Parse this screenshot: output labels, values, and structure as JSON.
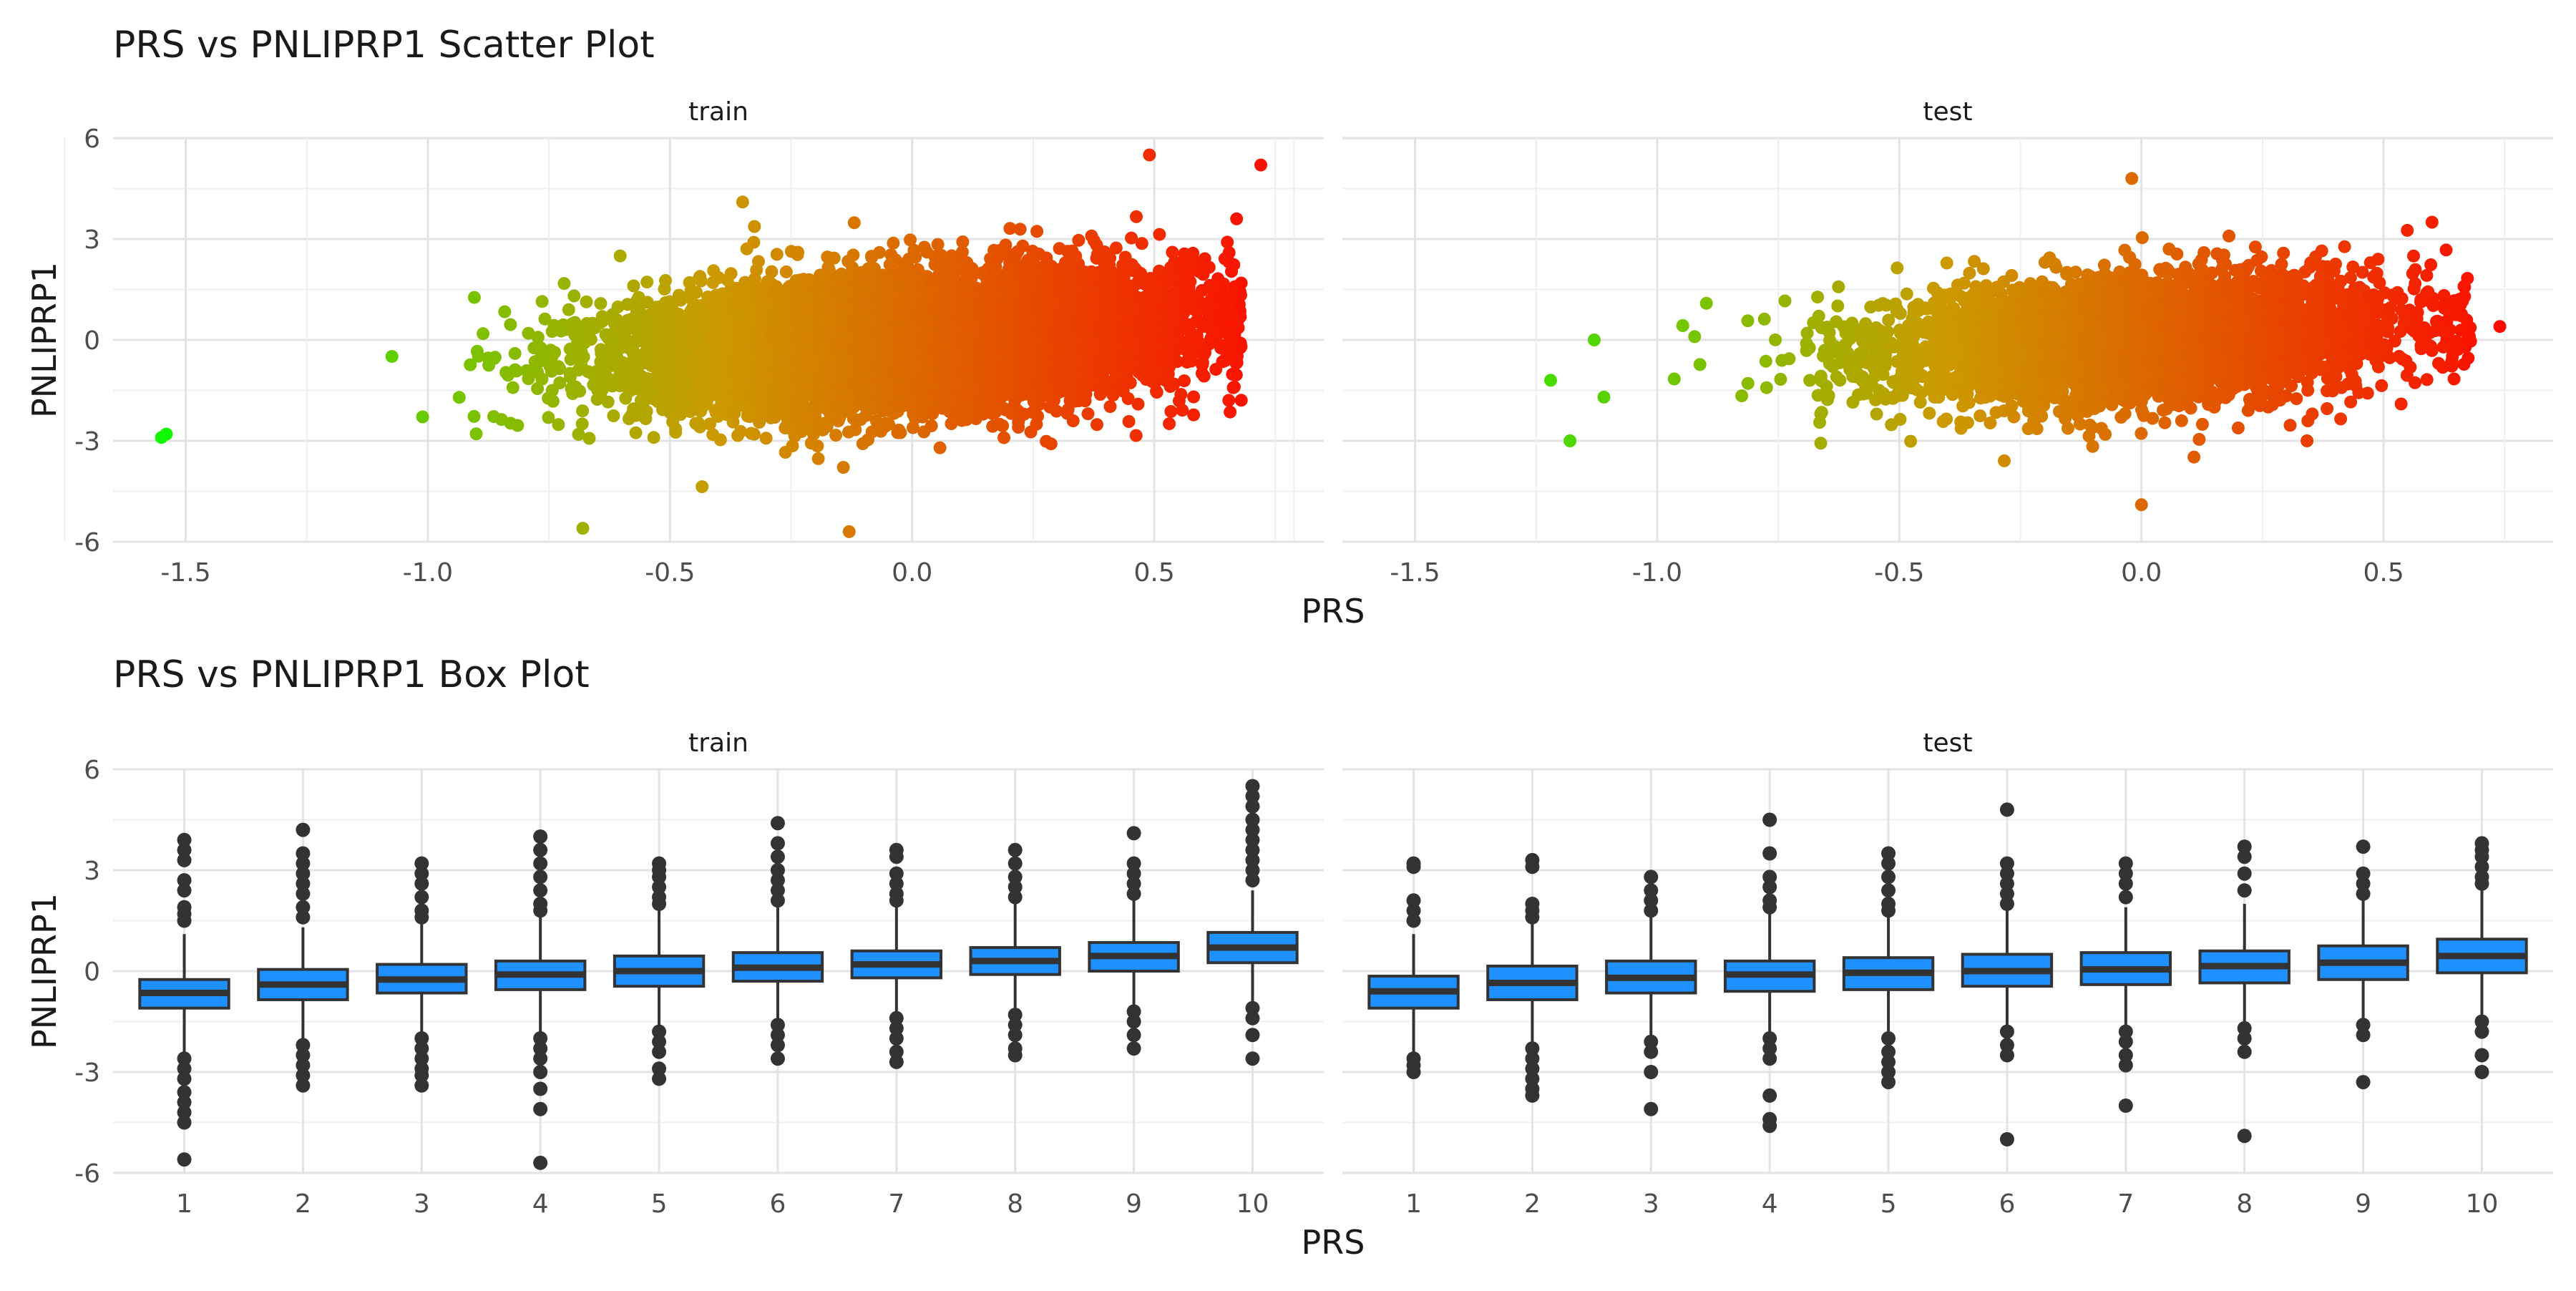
{
  "chart_data": [
    {
      "type": "scatter",
      "title": "PRS vs PNLIPRP1 Scatter Plot",
      "xlabel": "PRS",
      "ylabel": "PNLIPRP1",
      "facets": [
        "train",
        "test"
      ],
      "x_ticks": [
        "-1.5",
        "-1.0",
        "-0.5",
        "0.0",
        "0.5"
      ],
      "y_ticks": [
        "6",
        "3",
        "0",
        "-3",
        "-6"
      ],
      "xlim": [
        -1.65,
        0.85
      ],
      "ylim": [
        -6,
        6
      ],
      "grid": true,
      "color_scale": {
        "low": "#00ff00",
        "mid": "#cc9900",
        "high": "#ff0000",
        "mapped_to": "PRS"
      },
      "trend": {
        "slope": 1.75,
        "intercept": 0.2
      },
      "series": [
        {
          "facet": "train",
          "n_points_approx": 15000,
          "x_mean": 0.0,
          "x_sd": 0.28,
          "residual_sd": 0.95,
          "notable_points": [
            {
              "x": -1.54,
              "y": -2.8
            },
            {
              "x": -1.55,
              "y": -2.9
            },
            {
              "x": -0.68,
              "y": -5.6
            },
            {
              "x": -0.13,
              "y": -5.7
            },
            {
              "x": 0.49,
              "y": 5.5
            },
            {
              "x": 0.72,
              "y": 5.2
            },
            {
              "x": -0.35,
              "y": 4.1
            },
            {
              "x": 0.67,
              "y": 3.6
            }
          ]
        },
        {
          "facet": "test",
          "n_points_approx": 5000,
          "x_mean": 0.0,
          "x_sd": 0.26,
          "residual_sd": 0.9,
          "notable_points": [
            {
              "x": -1.18,
              "y": -3.0
            },
            {
              "x": -1.22,
              "y": -1.2
            },
            {
              "x": -1.13,
              "y": 0.0
            },
            {
              "x": -1.11,
              "y": -1.7
            },
            {
              "x": -0.02,
              "y": 4.8
            },
            {
              "x": 0.0,
              "y": -4.9
            },
            {
              "x": 0.74,
              "y": 0.4
            },
            {
              "x": 0.6,
              "y": 3.5
            }
          ]
        }
      ]
    },
    {
      "type": "box",
      "title": "PRS vs PNLIPRP1 Box Plot",
      "xlabel": "PRS",
      "ylabel": "PNLIPRP1",
      "facets": [
        "train",
        "test"
      ],
      "categories": [
        "1",
        "2",
        "3",
        "4",
        "5",
        "6",
        "7",
        "8",
        "9",
        "10"
      ],
      "y_ticks": [
        "6",
        "3",
        "0",
        "-3",
        "-6"
      ],
      "ylim": [
        -6,
        6
      ],
      "grid": true,
      "box_fill": "#1e90ff",
      "series": [
        {
          "facet": "train",
          "boxes": [
            {
              "q1": -1.1,
              "median": -0.65,
              "q3": -0.25,
              "lower_whisker": -2.5,
              "upper_whisker": 1.1,
              "outliers": [
                3.9,
                3.6,
                3.3,
                2.7,
                2.4,
                1.9,
                1.7,
                1.5,
                -2.6,
                -2.9,
                -3.2,
                -3.6,
                -3.9,
                -4.2,
                -4.5,
                -5.6
              ]
            },
            {
              "q1": -0.85,
              "median": -0.4,
              "q3": 0.05,
              "lower_whisker": -2.1,
              "upper_whisker": 1.3,
              "outliers": [
                4.2,
                3.5,
                3.2,
                2.9,
                2.6,
                2.3,
                1.9,
                1.6,
                -2.2,
                -2.5,
                -2.8,
                -3.1,
                -3.4
              ]
            },
            {
              "q1": -0.65,
              "median": -0.25,
              "q3": 0.2,
              "lower_whisker": -1.9,
              "upper_whisker": 1.4,
              "outliers": [
                3.2,
                2.9,
                2.6,
                2.2,
                1.8,
                1.6,
                -2.0,
                -2.3,
                -2.6,
                -2.9,
                -3.1,
                -3.4
              ]
            },
            {
              "q1": -0.55,
              "median": -0.1,
              "q3": 0.3,
              "lower_whisker": -1.8,
              "upper_whisker": 1.6,
              "outliers": [
                4.0,
                3.6,
                3.2,
                2.8,
                2.4,
                2.0,
                1.8,
                -2.0,
                -2.3,
                -2.6,
                -3.0,
                -3.5,
                -4.1,
                -5.7
              ]
            },
            {
              "q1": -0.45,
              "median": 0.0,
              "q3": 0.45,
              "lower_whisker": -1.7,
              "upper_whisker": 1.8,
              "outliers": [
                3.2,
                3.0,
                2.8,
                2.5,
                2.2,
                2.0,
                -1.8,
                -2.1,
                -2.4,
                -2.9,
                -3.2
              ]
            },
            {
              "q1": -0.3,
              "median": 0.1,
              "q3": 0.55,
              "lower_whisker": -1.5,
              "upper_whisker": 1.9,
              "outliers": [
                4.4,
                3.8,
                3.4,
                3.0,
                2.7,
                2.4,
                2.1,
                -1.6,
                -1.9,
                -2.2,
                -2.6
              ]
            },
            {
              "q1": -0.2,
              "median": 0.2,
              "q3": 0.6,
              "lower_whisker": -1.3,
              "upper_whisker": 2.0,
              "outliers": [
                3.6,
                3.4,
                2.9,
                2.6,
                2.3,
                2.1,
                -1.4,
                -1.7,
                -2.0,
                -2.4,
                -2.7
              ]
            },
            {
              "q1": -0.1,
              "median": 0.3,
              "q3": 0.7,
              "lower_whisker": -1.2,
              "upper_whisker": 2.0,
              "outliers": [
                3.6,
                3.2,
                2.8,
                2.5,
                2.2,
                -1.3,
                -1.6,
                -1.9,
                -2.3,
                -2.5
              ]
            },
            {
              "q1": 0.0,
              "median": 0.45,
              "q3": 0.85,
              "lower_whisker": -1.1,
              "upper_whisker": 2.1,
              "outliers": [
                4.1,
                3.2,
                2.9,
                2.6,
                2.3,
                -1.2,
                -1.5,
                -1.9,
                -2.3
              ]
            },
            {
              "q1": 0.25,
              "median": 0.7,
              "q3": 1.15,
              "lower_whisker": -1.0,
              "upper_whisker": 2.4,
              "outliers": [
                5.5,
                5.2,
                4.9,
                4.5,
                4.2,
                3.9,
                3.6,
                3.3,
                3.0,
                2.7,
                -1.1,
                -1.4,
                -1.9,
                -2.6
              ]
            }
          ]
        },
        {
          "facet": "test",
          "boxes": [
            {
              "q1": -1.1,
              "median": -0.6,
              "q3": -0.15,
              "lower_whisker": -2.5,
              "upper_whisker": 1.1,
              "outliers": [
                3.2,
                3.1,
                2.1,
                1.8,
                1.5,
                -2.6,
                -2.8,
                -3.0
              ]
            },
            {
              "q1": -0.85,
              "median": -0.35,
              "q3": 0.15,
              "lower_whisker": -2.1,
              "upper_whisker": 1.4,
              "outliers": [
                3.3,
                3.1,
                2.0,
                1.8,
                1.6,
                -2.3,
                -2.6,
                -2.9,
                -3.2,
                -3.5,
                -3.7
              ]
            },
            {
              "q1": -0.65,
              "median": -0.2,
              "q3": 0.3,
              "lower_whisker": -1.9,
              "upper_whisker": 1.6,
              "outliers": [
                2.8,
                2.4,
                2.1,
                1.8,
                -2.1,
                -2.4,
                -3.0,
                -4.1
              ]
            },
            {
              "q1": -0.6,
              "median": -0.1,
              "q3": 0.3,
              "lower_whisker": -1.8,
              "upper_whisker": 1.7,
              "outliers": [
                4.5,
                3.5,
                2.8,
                2.5,
                2.1,
                1.9,
                -2.0,
                -2.3,
                -2.6,
                -3.7,
                -4.4,
                -4.6
              ]
            },
            {
              "q1": -0.55,
              "median": -0.05,
              "q3": 0.4,
              "lower_whisker": -1.8,
              "upper_whisker": 1.7,
              "outliers": [
                3.5,
                3.2,
                2.8,
                2.4,
                2.0,
                1.8,
                -2.0,
                -2.4,
                -2.7,
                -3.0,
                -3.3
              ]
            },
            {
              "q1": -0.45,
              "median": 0.0,
              "q3": 0.5,
              "lower_whisker": -1.7,
              "upper_whisker": 1.8,
              "outliers": [
                4.8,
                3.2,
                2.9,
                2.6,
                2.3,
                2.0,
                -1.8,
                -2.2,
                -2.5,
                -5.0
              ]
            },
            {
              "q1": -0.4,
              "median": 0.05,
              "q3": 0.55,
              "lower_whisker": -1.6,
              "upper_whisker": 1.9,
              "outliers": [
                3.2,
                2.9,
                2.6,
                2.2,
                -1.8,
                -2.1,
                -2.5,
                -2.8,
                -4.0
              ]
            },
            {
              "q1": -0.35,
              "median": 0.15,
              "q3": 0.6,
              "lower_whisker": -1.6,
              "upper_whisker": 2.0,
              "outliers": [
                3.7,
                3.4,
                2.9,
                2.4,
                -1.7,
                -2.0,
                -2.4,
                -4.9
              ]
            },
            {
              "q1": -0.25,
              "median": 0.25,
              "q3": 0.75,
              "lower_whisker": -1.4,
              "upper_whisker": 2.1,
              "outliers": [
                3.7,
                2.9,
                2.6,
                2.3,
                -1.6,
                -1.9,
                -3.3
              ]
            },
            {
              "q1": -0.05,
              "median": 0.45,
              "q3": 0.95,
              "lower_whisker": -1.3,
              "upper_whisker": 2.4,
              "outliers": [
                3.8,
                3.6,
                3.4,
                3.1,
                2.8,
                2.6,
                -1.5,
                -1.8,
                -2.5,
                -3.0
              ]
            }
          ]
        }
      ]
    }
  ]
}
